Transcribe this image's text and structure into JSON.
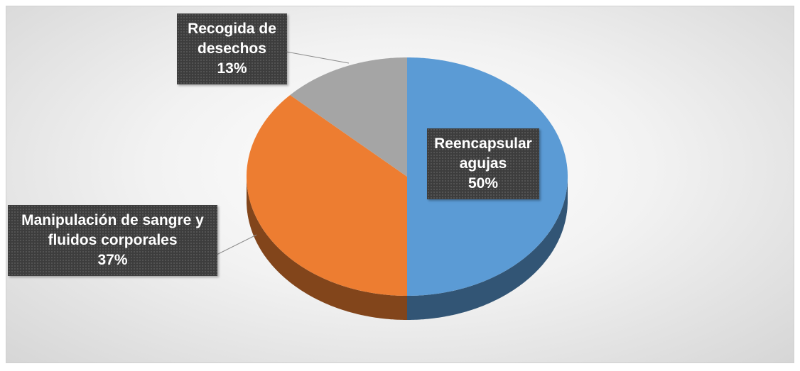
{
  "chart_data": {
    "type": "pie",
    "categories": [
      "Reencapsular agujas",
      "Manipulación de sangre y fluidos corporales",
      "Recogida de desechos"
    ],
    "values": [
      50,
      37,
      13
    ],
    "value_labels": [
      "50%",
      "37%",
      "13%"
    ],
    "colors": [
      "#5b9bd5",
      "#ed7d31",
      "#a5a5a5"
    ]
  }
}
